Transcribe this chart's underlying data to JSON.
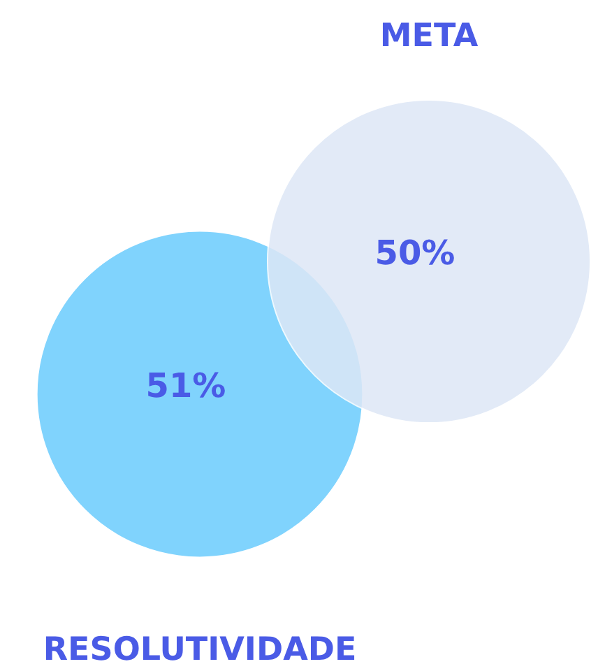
{
  "chart_data": {
    "type": "other",
    "categories": [
      "META",
      "RESOLUTIVIDADE"
    ],
    "values": [
      50,
      51
    ],
    "colors": [
      "#dde7f6",
      "#80d3fd"
    ],
    "value_labels": [
      "50%",
      "51%"
    ]
  }
}
